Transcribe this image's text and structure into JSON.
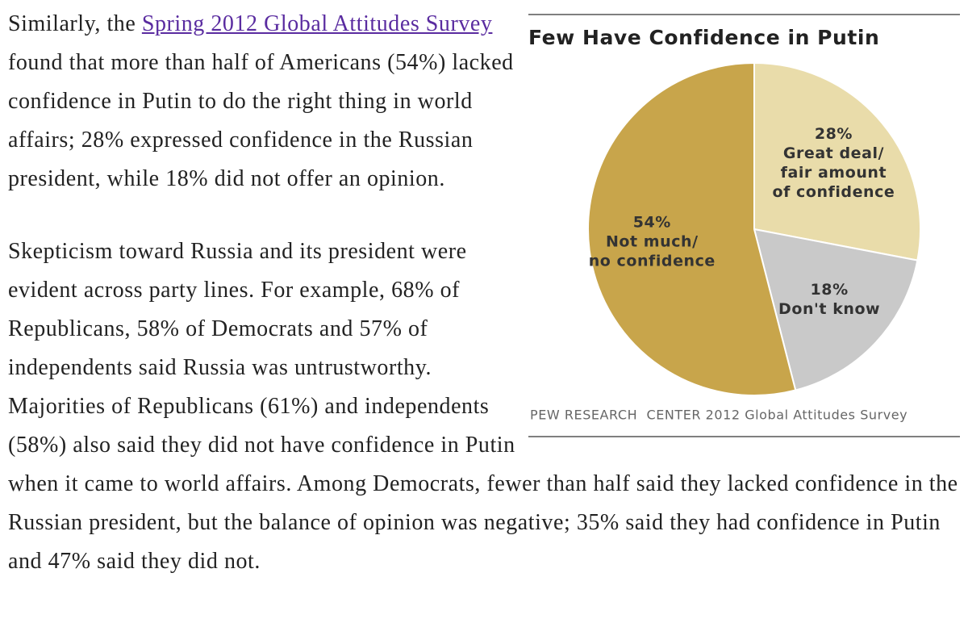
{
  "paragraphs": [
    {
      "before": "Similarly, the ",
      "link": "Spring 2012 Global Attitudes Survey",
      "after": " found that more than half of Americans (54%) lacked confidence in Putin to do the right thing in world affairs; 28% expressed confidence in the Russian president, while 18% did not offer an opinion."
    },
    {
      "text": "Skepticism toward Russia and its president were evident across party lines. For example, 68% of Republicans, 58% of Democrats and 57% of independents said Russia was untrustworthy. Majorities of Republicans (61%) and independents (58%) also said they did not have confidence in Putin when it came to world affairs. Among Democrats, fewer than half said they lacked confidence in the Russian president, but the balance of opinion was negative; 35% said they had confidence in Putin and 47% said they did not."
    }
  ],
  "chart_data": {
    "type": "pie",
    "title": "Few Have Confidence in Putin",
    "source": "PEW RESEARCH  CENTER 2012 Global Attitudes Survey",
    "categories": [
      [
        "Great deal/",
        "fair amount",
        "of confidence"
      ],
      [
        "Don't know"
      ],
      [
        "Not much/",
        "no confidence"
      ]
    ],
    "values": [
      28,
      18,
      54
    ],
    "value_labels": [
      "28%",
      "18%",
      "54%"
    ],
    "colors": [
      "#e9dcaa",
      "#c9c9c9",
      "#c8a54b"
    ]
  }
}
